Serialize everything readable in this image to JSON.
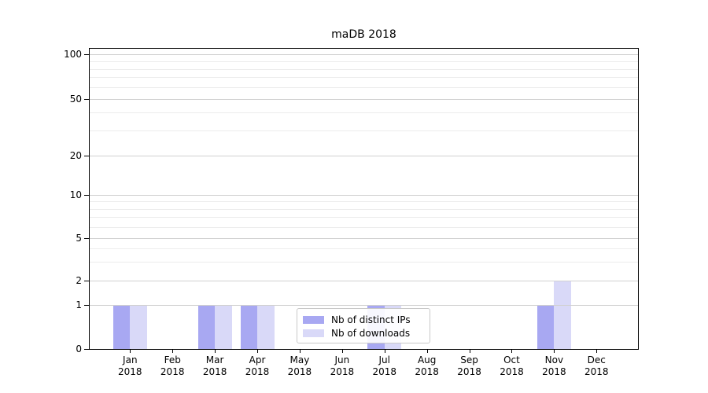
{
  "title": "maDB 2018",
  "chart_data": {
    "type": "bar",
    "title": "maDB 2018",
    "categories": [
      "Jan 2018",
      "Feb 2018",
      "Mar 2018",
      "Apr 2018",
      "May 2018",
      "Jun 2018",
      "Jul 2018",
      "Aug 2018",
      "Sep 2018",
      "Oct 2018",
      "Nov 2018",
      "Dec 2018"
    ],
    "series": [
      {
        "name": "Nb of distinct IPs",
        "color": "#a8a8f2",
        "values": [
          1,
          0,
          1,
          1,
          0,
          0,
          1,
          0,
          0,
          0,
          1,
          0
        ]
      },
      {
        "name": "Nb of downloads",
        "color": "#d9d9f8",
        "values": [
          1,
          0,
          1,
          1,
          0,
          0,
          1,
          0,
          0,
          0,
          2,
          0
        ]
      }
    ],
    "xlabel": "",
    "ylabel": "",
    "yscale": "log above 1, linear segment 0-1 (symlog)",
    "yticks": [
      0,
      1,
      2,
      5,
      10,
      20,
      50,
      100
    ],
    "minor_gridline_values": [
      3,
      4,
      6,
      7,
      8,
      9,
      30,
      40,
      60,
      70,
      80,
      90
    ],
    "ylim": [
      0,
      115
    ],
    "grid": "horizontal major + minor",
    "legend_position": "lower center"
  },
  "colors": {
    "grid_major": "#d0d0d0",
    "grid_minor": "#ececec",
    "spine": "#000000",
    "background": "#ffffff"
  }
}
